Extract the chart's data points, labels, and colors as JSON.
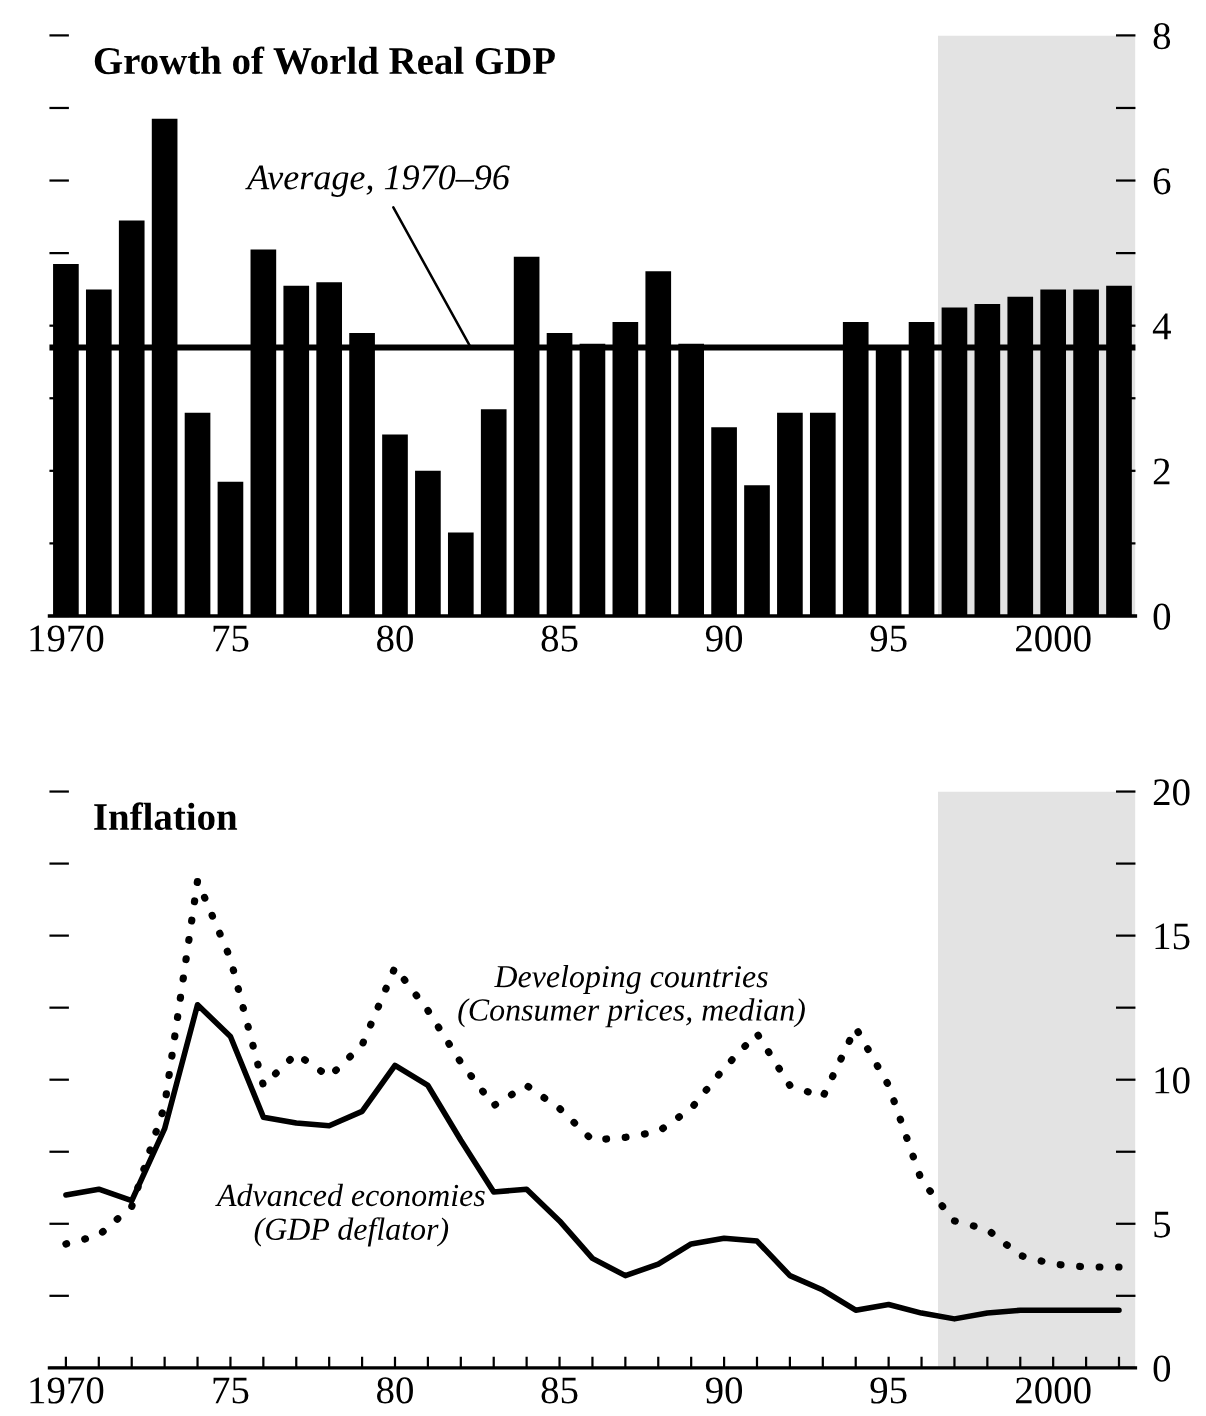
{
  "chart_data": [
    {
      "type": "bar",
      "title": "Growth of World Real GDP",
      "x": [
        1970,
        1971,
        1972,
        1973,
        1974,
        1975,
        1976,
        1977,
        1978,
        1979,
        1980,
        1981,
        1982,
        1983,
        1984,
        1985,
        1986,
        1987,
        1988,
        1989,
        1990,
        1991,
        1992,
        1993,
        1994,
        1995,
        1996,
        1997,
        1998,
        1999,
        2000,
        2001,
        2002
      ],
      "series": [
        {
          "color": "#000000",
          "values": [
            4.85,
            4.5,
            5.45,
            6.85,
            2.8,
            1.85,
            5.05,
            4.55,
            4.6,
            3.9,
            2.5,
            2.0,
            1.15,
            2.85,
            4.95,
            3.9,
            3.75,
            4.05,
            4.75,
            3.75,
            2.6,
            1.8,
            2.8,
            2.8,
            4.05,
            3.7,
            4.05,
            4.25,
            4.3,
            4.4,
            4.5,
            4.5,
            4.55
          ]
        }
      ],
      "xlim": [
        1969.5,
        2002.5
      ],
      "xticks": [
        {
          "value": 1970,
          "label": "1970"
        },
        {
          "value": 1971,
          "label": null
        },
        {
          "value": 1972,
          "label": null
        },
        {
          "value": 1973,
          "label": null
        },
        {
          "value": 1974,
          "label": null
        },
        {
          "value": 1975,
          "label": "75"
        },
        {
          "value": 1976,
          "label": null
        },
        {
          "value": 1977,
          "label": null
        },
        {
          "value": 1978,
          "label": null
        },
        {
          "value": 1979,
          "label": null
        },
        {
          "value": 1980,
          "label": "80"
        },
        {
          "value": 1981,
          "label": null
        },
        {
          "value": 1982,
          "label": null
        },
        {
          "value": 1983,
          "label": null
        },
        {
          "value": 1984,
          "label": null
        },
        {
          "value": 1985,
          "label": "85"
        },
        {
          "value": 1986,
          "label": null
        },
        {
          "value": 1987,
          "label": null
        },
        {
          "value": 1988,
          "label": null
        },
        {
          "value": 1989,
          "label": null
        },
        {
          "value": 1990,
          "label": "90"
        },
        {
          "value": 1991,
          "label": null
        },
        {
          "value": 1992,
          "label": null
        },
        {
          "value": 1993,
          "label": null
        },
        {
          "value": 1994,
          "label": null
        },
        {
          "value": 1995,
          "label": "95"
        },
        {
          "value": 1996,
          "label": null
        },
        {
          "value": 1997,
          "label": null
        },
        {
          "value": 1998,
          "label": null
        },
        {
          "value": 1999,
          "label": null
        },
        {
          "value": 2000,
          "label": "2000"
        },
        {
          "value": 2001,
          "label": null
        },
        {
          "value": 2002,
          "label": null
        }
      ],
      "ylim": [
        0,
        8
      ],
      "yticks": [
        0,
        {
          "value": 1,
          "label": null
        },
        2,
        {
          "value": 3,
          "label": null
        },
        4,
        {
          "value": 5,
          "label": null
        },
        6,
        {
          "value": 7,
          "label": null
        },
        8
      ],
      "ref_lines": [
        {
          "axis": "y",
          "value": 3.7,
          "label": "Average, 1970–96",
          "color": "#000000"
        }
      ],
      "bands": [
        {
          "axis": "x",
          "from": 1996.5,
          "to": 2002.5,
          "color": "#e3e3e3"
        }
      ],
      "grid": false,
      "legend": false
    },
    {
      "type": "line",
      "title": "Inflation",
      "x": [
        1970,
        1971,
        1972,
        1973,
        1974,
        1975,
        1976,
        1977,
        1978,
        1979,
        1980,
        1981,
        1982,
        1983,
        1984,
        1985,
        1986,
        1987,
        1988,
        1989,
        1990,
        1991,
        1992,
        1993,
        1994,
        1995,
        1996,
        1997,
        1998,
        1999,
        2000,
        2001,
        2002
      ],
      "series": [
        {
          "name": "Advanced economies\n(GDP deflator)",
          "color": "#000000",
          "line_style": "solid",
          "values": [
            6.0,
            6.2,
            5.8,
            8.3,
            12.6,
            11.5,
            8.7,
            8.5,
            8.4,
            8.9,
            10.5,
            9.8,
            7.9,
            6.1,
            6.2,
            5.1,
            3.8,
            3.2,
            3.6,
            4.3,
            4.5,
            4.4,
            3.2,
            2.7,
            2.0,
            2.2,
            1.9,
            1.7,
            1.9,
            2.0,
            2.0,
            2.0,
            2.0
          ]
        },
        {
          "name": "Developing countries\n(Consumer prices, median)",
          "color": "#000000",
          "line_style": "dotted",
          "values": [
            4.3,
            4.6,
            5.6,
            9.1,
            16.9,
            14.2,
            9.8,
            10.9,
            10.1,
            11.2,
            13.9,
            12.4,
            10.6,
            9.1,
            9.8,
            9.0,
            7.9,
            8.0,
            8.2,
            9.0,
            10.4,
            11.6,
            9.8,
            9.4,
            11.8,
            9.8,
            6.5,
            5.1,
            4.8,
            3.9,
            3.6,
            3.5,
            3.5
          ]
        }
      ],
      "xlim": [
        1969.5,
        2002.5
      ],
      "xticks": [
        {
          "value": 1970,
          "label": "1970"
        },
        {
          "value": 1971,
          "label": null
        },
        {
          "value": 1972,
          "label": null
        },
        {
          "value": 1973,
          "label": null
        },
        {
          "value": 1974,
          "label": null
        },
        {
          "value": 1975,
          "label": "75"
        },
        {
          "value": 1976,
          "label": null
        },
        {
          "value": 1977,
          "label": null
        },
        {
          "value": 1978,
          "label": null
        },
        {
          "value": 1979,
          "label": null
        },
        {
          "value": 1980,
          "label": "80"
        },
        {
          "value": 1981,
          "label": null
        },
        {
          "value": 1982,
          "label": null
        },
        {
          "value": 1983,
          "label": null
        },
        {
          "value": 1984,
          "label": null
        },
        {
          "value": 1985,
          "label": "85"
        },
        {
          "value": 1986,
          "label": null
        },
        {
          "value": 1987,
          "label": null
        },
        {
          "value": 1988,
          "label": null
        },
        {
          "value": 1989,
          "label": null
        },
        {
          "value": 1990,
          "label": "90"
        },
        {
          "value": 1991,
          "label": null
        },
        {
          "value": 1992,
          "label": null
        },
        {
          "value": 1993,
          "label": null
        },
        {
          "value": 1994,
          "label": null
        },
        {
          "value": 1995,
          "label": "95"
        },
        {
          "value": 1996,
          "label": null
        },
        {
          "value": 1997,
          "label": null
        },
        {
          "value": 1998,
          "label": null
        },
        {
          "value": 1999,
          "label": null
        },
        {
          "value": 2000,
          "label": "2000"
        },
        {
          "value": 2001,
          "label": null
        },
        {
          "value": 2002,
          "label": null
        }
      ],
      "ylim": [
        0,
        20
      ],
      "yticks": [
        0,
        {
          "value": 2.5,
          "label": null
        },
        5,
        {
          "value": 7.5,
          "label": null
        },
        10,
        {
          "value": 12.5,
          "label": null
        },
        15,
        {
          "value": 17.5,
          "label": null
        },
        20
      ],
      "bands": [
        {
          "axis": "x",
          "from": 1996.5,
          "to": 2002.5,
          "color": "#e3e3e3"
        }
      ],
      "grid": false,
      "legend": false,
      "marker": "none"
    }
  ]
}
